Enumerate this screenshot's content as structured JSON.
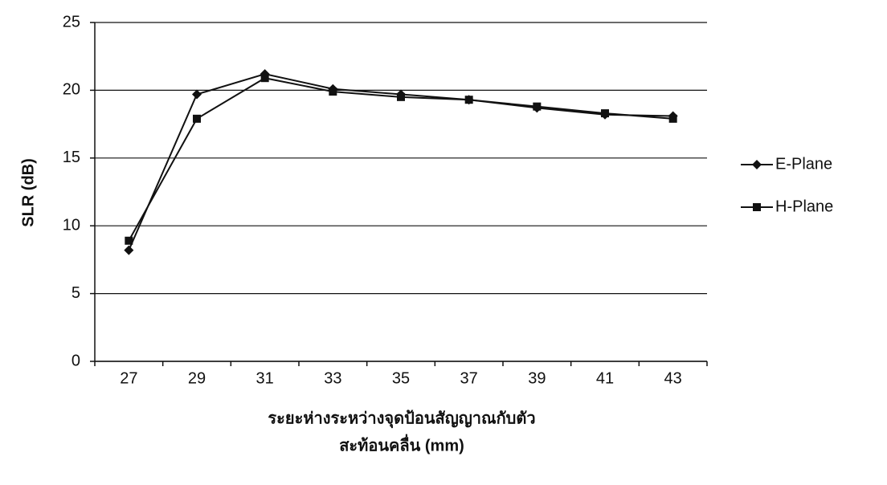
{
  "chart_data": {
    "type": "line",
    "ylabel": "SLR (dB)",
    "xlabel": [
      "ระยะห่างระหว่างจุดป้อนสัญญาณกับตัว",
      "สะท้อนคลื่น (mm)"
    ],
    "categories": [
      "27",
      "29",
      "31",
      "33",
      "35",
      "37",
      "39",
      "41",
      "43"
    ],
    "series": [
      {
        "name": "E-Plane",
        "color": "#111111",
        "marker": "diamond",
        "values": [
          8.2,
          19.7,
          21.2,
          20.1,
          19.7,
          19.3,
          18.7,
          18.2,
          18.1
        ]
      },
      {
        "name": "H-Plane",
        "color": "#111111",
        "marker": "square",
        "values": [
          8.9,
          17.9,
          20.9,
          19.9,
          19.5,
          19.3,
          18.8,
          18.3,
          17.9
        ]
      }
    ],
    "ylim": [
      0,
      25
    ],
    "yticks": [
      0,
      5,
      10,
      15,
      20,
      25
    ],
    "grid": true,
    "legend": "right"
  }
}
